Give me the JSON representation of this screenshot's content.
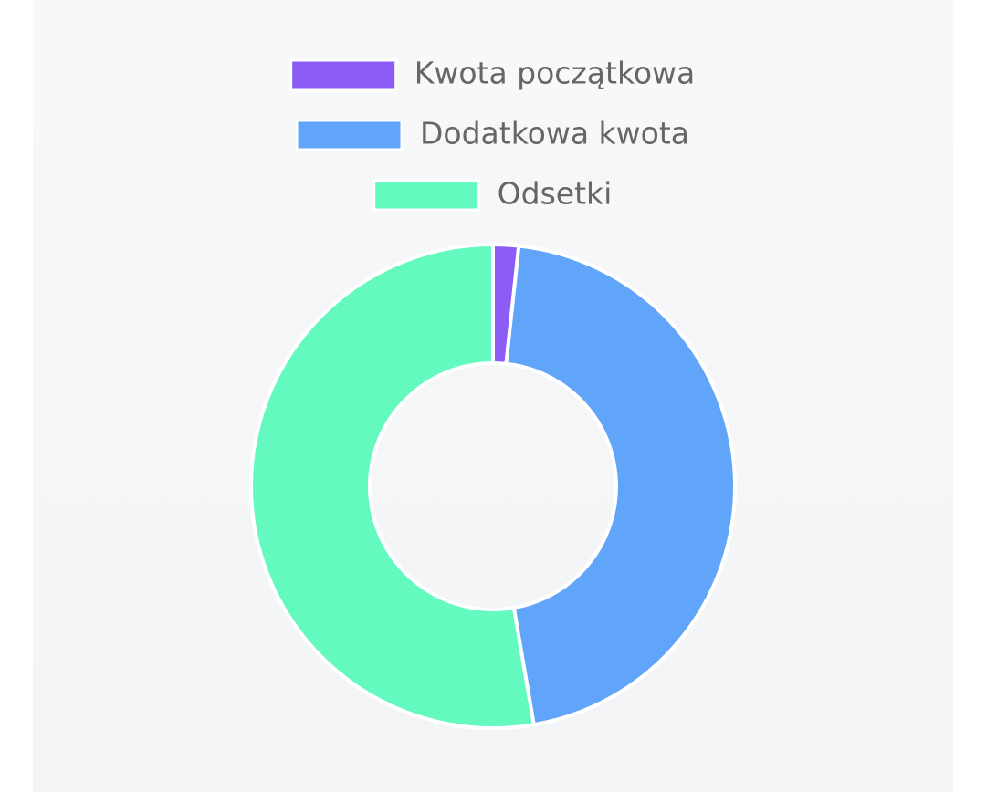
{
  "chart_data": {
    "type": "doughnut",
    "categories": [
      "Kwota początkowa",
      "Dodatkowa kwota",
      "Odsetki"
    ],
    "values": [
      1.7,
      45.6,
      52.7
    ],
    "colors": [
      "#8b5cf6",
      "#60a5fa",
      "#63f9bf"
    ],
    "legend": "top"
  }
}
